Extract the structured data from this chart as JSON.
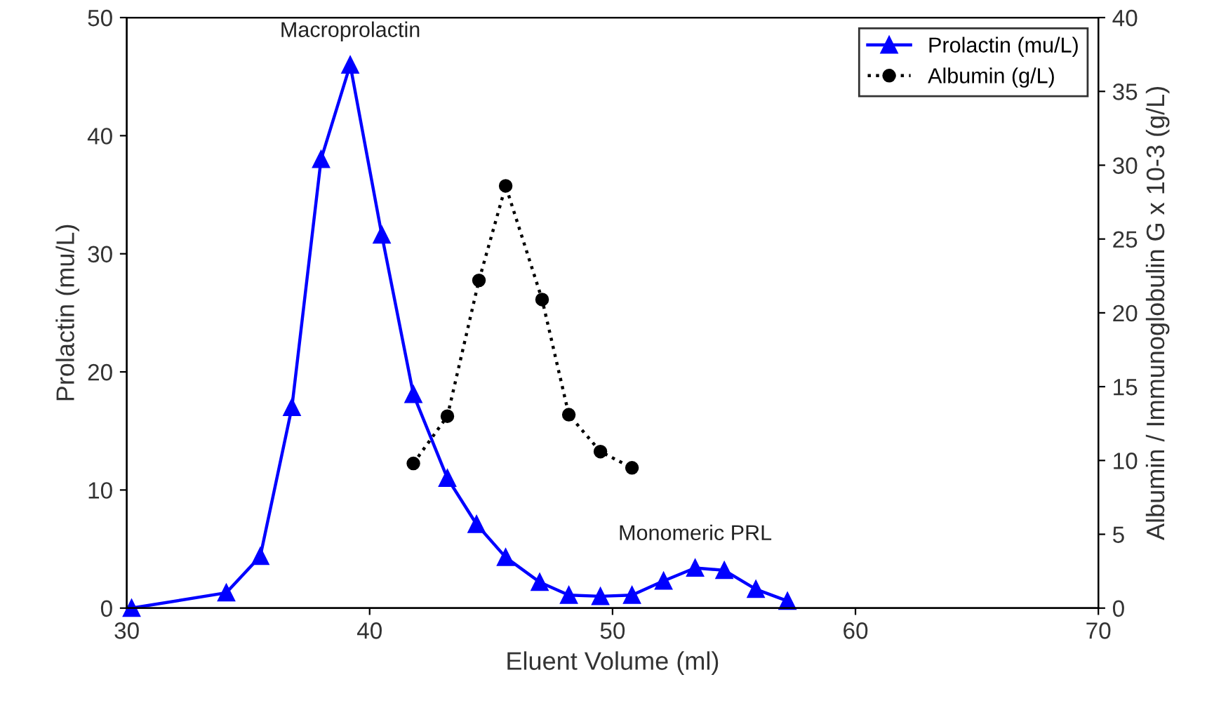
{
  "chart_data": {
    "type": "line",
    "xlabel": "Eluent Volume (ml)",
    "ylabel": "Prolactin (mu/L)",
    "y2label": "Albumin / Immunoglobulin G x 10-3 (g/L)",
    "xlim": [
      30,
      70
    ],
    "xticks": [
      30,
      40,
      50,
      60,
      70
    ],
    "ylim": [
      0,
      50
    ],
    "yticks": [
      0,
      10,
      20,
      30,
      40,
      50
    ],
    "y2lim": [
      0,
      40
    ],
    "y2ticks": [
      0,
      5,
      10,
      15,
      20,
      25,
      30,
      35,
      40
    ],
    "series": [
      {
        "name": "Prolactin (mu/L)",
        "color": "#0000ff",
        "marker": "triangle",
        "line_style": "solid",
        "x": [
          30.2,
          34.1,
          35.5,
          36.8,
          38.0,
          39.2,
          40.5,
          41.8,
          43.2,
          44.4,
          45.6,
          47.0,
          48.2,
          49.5,
          50.8,
          52.1,
          53.4,
          54.6,
          55.9,
          57.2
        ],
        "values": [
          0,
          1.3,
          4.4,
          17,
          38,
          46,
          31.6,
          18.1,
          11,
          7.1,
          4.3,
          2.2,
          1.1,
          1.0,
          1.1,
          2.3,
          3.4,
          3.2,
          1.6,
          0.6
        ]
      },
      {
        "name": "Albumin (g/L)",
        "color": "#000000",
        "marker": "circle",
        "line_style": "dotted",
        "axis": "y2",
        "x": [
          41.8,
          43.2,
          44.5,
          45.6,
          47.1,
          48.2,
          49.5,
          50.8
        ],
        "values": [
          9.8,
          13.0,
          22.2,
          28.6,
          20.9,
          13.1,
          10.6,
          9.5
        ]
      }
    ],
    "annotations": [
      {
        "text": "Macroprolactin",
        "x": 39.2,
        "y": 46
      },
      {
        "text": "Monomeric PRL",
        "x": 53.4,
        "y": 3.4
      }
    ],
    "legend": "top right",
    "grid": false
  }
}
